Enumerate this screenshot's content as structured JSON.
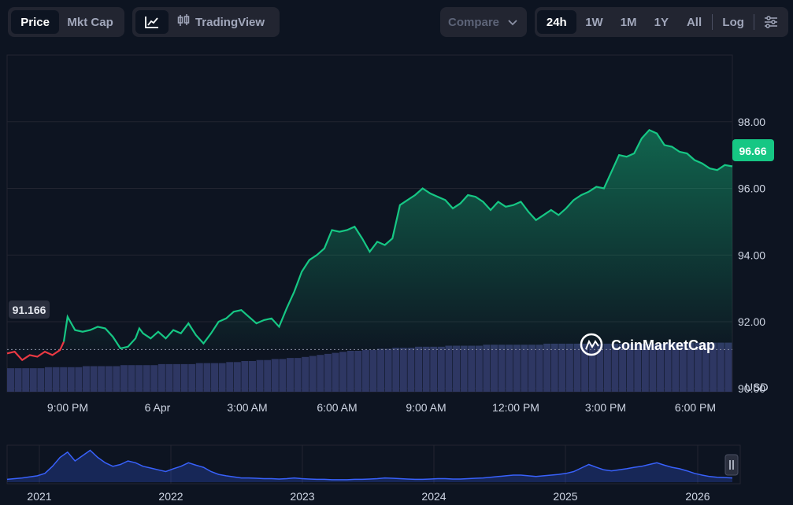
{
  "toolbar": {
    "view_tabs": {
      "price": "Price",
      "mktcap": "Mkt Cap"
    },
    "chart_icons": {
      "line": "line-chart-icon",
      "candles": "candlestick-icon",
      "tradingview": "TradingView"
    },
    "compare": "Compare",
    "ranges": [
      "24h",
      "1W",
      "1M",
      "1Y",
      "All"
    ],
    "active_range": "24h",
    "log": "Log",
    "settings_icon": "settings-sliders-icon"
  },
  "colors": {
    "background": "#0d1421",
    "up_line": "#16c784",
    "down_line": "#ea3943",
    "volume": "#2e3763",
    "mini_line": "#3861fb",
    "grid": "#222531"
  },
  "watermark": "CoinMarketCap",
  "chart_data": {
    "type": "line",
    "currency": "USD",
    "y_ticks": [
      "98.00",
      "96.00",
      "94.00",
      "92.00",
      "90.00"
    ],
    "ylim": [
      89.9,
      100.0
    ],
    "x_ticks": [
      "9:00 PM",
      "6 Apr",
      "3:00 AM",
      "6:00 AM",
      "9:00 AM",
      "12:00 PM",
      "3:00 PM",
      "6:00 PM"
    ],
    "open_price": "91.166",
    "current_price": "96.66",
    "series": [
      {
        "points": [
          [
            0.0,
            91.05
          ],
          [
            1.0,
            91.1
          ],
          [
            2.0,
            90.85
          ],
          [
            3.0,
            91.0
          ],
          [
            4.0,
            90.95
          ],
          [
            5.0,
            91.1
          ],
          [
            6.0,
            91.0
          ],
          [
            7.0,
            91.15
          ],
          [
            7.5,
            91.4
          ],
          [
            8.0,
            92.15
          ],
          [
            8.5,
            91.95
          ],
          [
            9.0,
            91.75
          ],
          [
            10.0,
            91.7
          ],
          [
            11.0,
            91.75
          ],
          [
            12.0,
            91.85
          ],
          [
            13.0,
            91.8
          ],
          [
            14.0,
            91.55
          ],
          [
            15.0,
            91.2
          ],
          [
            16.0,
            91.25
          ],
          [
            17.0,
            91.5
          ],
          [
            17.5,
            91.8
          ],
          [
            18.0,
            91.65
          ],
          [
            19.0,
            91.5
          ],
          [
            20.0,
            91.7
          ],
          [
            21.0,
            91.5
          ],
          [
            22.0,
            91.75
          ],
          [
            23.0,
            91.65
          ],
          [
            24.0,
            91.95
          ],
          [
            25.0,
            91.6
          ],
          [
            26.0,
            91.35
          ],
          [
            27.0,
            91.65
          ],
          [
            28.0,
            92.0
          ],
          [
            29.0,
            92.1
          ],
          [
            30.0,
            92.3
          ],
          [
            31.0,
            92.35
          ],
          [
            32.0,
            92.15
          ],
          [
            33.0,
            91.95
          ],
          [
            34.0,
            92.05
          ],
          [
            35.0,
            92.1
          ],
          [
            36.0,
            91.85
          ],
          [
            37.0,
            92.4
          ],
          [
            38.0,
            92.9
          ],
          [
            39.0,
            93.5
          ],
          [
            40.0,
            93.85
          ],
          [
            41.0,
            94.0
          ],
          [
            42.0,
            94.2
          ],
          [
            43.0,
            94.75
          ],
          [
            44.0,
            94.7
          ],
          [
            45.0,
            94.75
          ],
          [
            46.0,
            94.85
          ],
          [
            47.0,
            94.5
          ],
          [
            48.0,
            94.1
          ],
          [
            49.0,
            94.4
          ],
          [
            50.0,
            94.3
          ],
          [
            51.0,
            94.5
          ],
          [
            52.0,
            95.5
          ],
          [
            53.0,
            95.65
          ],
          [
            54.0,
            95.8
          ],
          [
            55.0,
            96.0
          ],
          [
            56.0,
            95.85
          ],
          [
            57.0,
            95.75
          ],
          [
            58.0,
            95.65
          ],
          [
            59.0,
            95.4
          ],
          [
            60.0,
            95.55
          ],
          [
            61.0,
            95.8
          ],
          [
            62.0,
            95.75
          ],
          [
            63.0,
            95.6
          ],
          [
            64.0,
            95.35
          ],
          [
            65.0,
            95.6
          ],
          [
            66.0,
            95.45
          ],
          [
            67.0,
            95.5
          ],
          [
            68.0,
            95.6
          ],
          [
            69.0,
            95.3
          ],
          [
            70.0,
            95.05
          ],
          [
            71.0,
            95.2
          ],
          [
            72.0,
            95.35
          ],
          [
            73.0,
            95.2
          ],
          [
            74.0,
            95.4
          ],
          [
            75.0,
            95.65
          ],
          [
            76.0,
            95.8
          ],
          [
            77.0,
            95.9
          ],
          [
            78.0,
            96.05
          ],
          [
            79.0,
            96.0
          ],
          [
            80.0,
            96.5
          ],
          [
            81.0,
            97.0
          ],
          [
            82.0,
            96.95
          ],
          [
            83.0,
            97.05
          ],
          [
            84.0,
            97.5
          ],
          [
            85.0,
            97.75
          ],
          [
            86.0,
            97.65
          ],
          [
            87.0,
            97.3
          ],
          [
            88.0,
            97.25
          ],
          [
            89.0,
            97.1
          ],
          [
            90.0,
            97.05
          ],
          [
            91.0,
            96.85
          ],
          [
            92.0,
            96.75
          ],
          [
            93.0,
            96.6
          ],
          [
            94.0,
            96.55
          ],
          [
            95.0,
            96.7
          ],
          [
            96.0,
            96.66
          ]
        ]
      }
    ],
    "volume": [
      0.23,
      0.23,
      0.23,
      0.23,
      0.23,
      0.24,
      0.24,
      0.24,
      0.24,
      0.24,
      0.25,
      0.25,
      0.25,
      0.25,
      0.25,
      0.26,
      0.26,
      0.26,
      0.26,
      0.26,
      0.27,
      0.27,
      0.27,
      0.27,
      0.27,
      0.28,
      0.28,
      0.28,
      0.28,
      0.29,
      0.29,
      0.3,
      0.3,
      0.31,
      0.31,
      0.32,
      0.32,
      0.33,
      0.33,
      0.34,
      0.35,
      0.36,
      0.37,
      0.38,
      0.39,
      0.4,
      0.4,
      0.41,
      0.41,
      0.42,
      0.42,
      0.43,
      0.43,
      0.43,
      0.44,
      0.44,
      0.44,
      0.44,
      0.45,
      0.45,
      0.45,
      0.45,
      0.45,
      0.46,
      0.46,
      0.46,
      0.46,
      0.46,
      0.46,
      0.46,
      0.46,
      0.47,
      0.47,
      0.47,
      0.47,
      0.47,
      0.47,
      0.47,
      0.47,
      0.47,
      0.47,
      0.47,
      0.47,
      0.47,
      0.47,
      0.47,
      0.47,
      0.48,
      0.48,
      0.48,
      0.48,
      0.48,
      0.48,
      0.48,
      0.48,
      0.48
    ],
    "overview": {
      "years": [
        "2021",
        "2022",
        "2023",
        "2024",
        "2025",
        "2026"
      ],
      "values": [
        0.08,
        0.1,
        0.12,
        0.15,
        0.18,
        0.25,
        0.45,
        0.7,
        0.85,
        0.6,
        0.75,
        0.9,
        0.7,
        0.55,
        0.45,
        0.5,
        0.6,
        0.55,
        0.45,
        0.4,
        0.35,
        0.3,
        0.38,
        0.45,
        0.55,
        0.48,
        0.42,
        0.3,
        0.22,
        0.18,
        0.15,
        0.12,
        0.12,
        0.11,
        0.1,
        0.1,
        0.09,
        0.1,
        0.12,
        0.1,
        0.09,
        0.08,
        0.08,
        0.07,
        0.07,
        0.07,
        0.08,
        0.08,
        0.09,
        0.1,
        0.12,
        0.11,
        0.1,
        0.09,
        0.08,
        0.08,
        0.09,
        0.1,
        0.1,
        0.09,
        0.09,
        0.1,
        0.11,
        0.12,
        0.14,
        0.16,
        0.18,
        0.2,
        0.2,
        0.18,
        0.16,
        0.18,
        0.2,
        0.22,
        0.25,
        0.3,
        0.4,
        0.5,
        0.42,
        0.35,
        0.32,
        0.35,
        0.38,
        0.42,
        0.45,
        0.5,
        0.55,
        0.48,
        0.42,
        0.38,
        0.32,
        0.25,
        0.2,
        0.16,
        0.14,
        0.13,
        0.12
      ]
    }
  }
}
